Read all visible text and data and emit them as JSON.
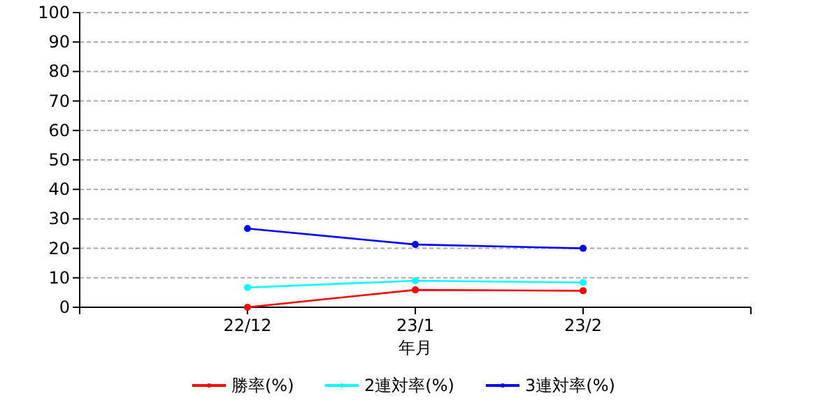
{
  "chart_data": {
    "type": "line",
    "xlabel": "年月",
    "categories": [
      "22/12",
      "23/1",
      "23/2"
    ],
    "series": [
      {
        "name": "勝率(%)",
        "color": "#ff0000",
        "values": [
          0,
          5.9,
          5.6
        ]
      },
      {
        "name": "2連対率(%)",
        "color": "#00ffff",
        "values": [
          6.7,
          9.0,
          8.4
        ]
      },
      {
        "name": "3連対率(%)",
        "color": "#0000ff",
        "values": [
          26.7,
          21.3,
          20.0
        ]
      }
    ],
    "ylim": [
      0,
      100
    ],
    "yticks": [
      0,
      10,
      20,
      30,
      40,
      50,
      60,
      70,
      80,
      90,
      100
    ],
    "grid": "y",
    "legend": "bottom",
    "marker": "circle",
    "line_style": "solid"
  }
}
